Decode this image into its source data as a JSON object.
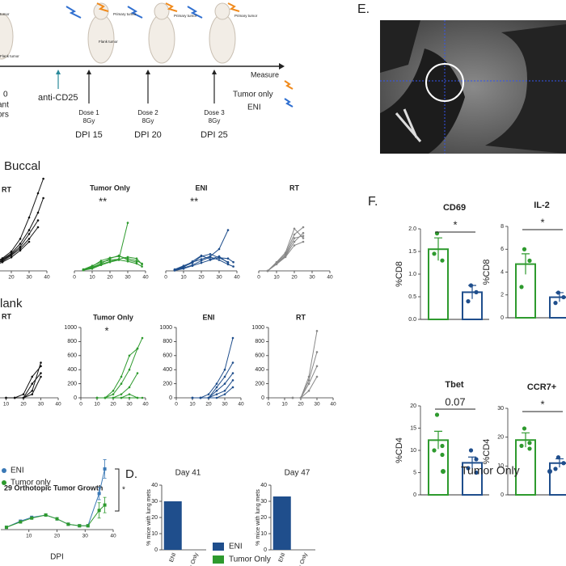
{
  "panel_labels": {
    "e": "E.",
    "f": "F.",
    "d": "D."
  },
  "rows": {
    "buccal": "Buccal",
    "flank": "lank"
  },
  "timeline": {
    "left_labels": [
      "tumor",
      "Flank tumor"
    ],
    "primary_labels": [
      "Primary tumor",
      "Primary tumor",
      "Primary tumor"
    ],
    "flank_label": "Flank tumor",
    "measure": "Measure",
    "left_text": [
      "0",
      "ant",
      "ors"
    ],
    "anti": "anti-CD25",
    "doses": [
      {
        "name": "Dose 1",
        "dose": "8Gy",
        "dpi": "DPI 15"
      },
      {
        "name": "Dose 2",
        "dose": "8Gy",
        "dpi": "DPI 20"
      },
      {
        "name": "Dose 3",
        "dose": "8Gy",
        "dpi": "DPI 25"
      }
    ],
    "legend": [
      "Tumor only",
      "ENI"
    ]
  },
  "chart_data": [
    {
      "type": "line",
      "title": "RT",
      "color": "#111111",
      "x": [
        5,
        10,
        15,
        20,
        25,
        30,
        35,
        38
      ],
      "xlim": [
        0,
        40
      ],
      "xticks": [
        0,
        10,
        20,
        30,
        40
      ],
      "ylim": [
        0,
        1000
      ],
      "series": [
        {
          "values": [
            30,
            80,
            130,
            200,
            330,
            550,
            800,
            950
          ]
        },
        {
          "values": [
            30,
            70,
            120,
            180,
            280,
            420,
            600,
            750
          ]
        },
        {
          "values": [
            20,
            60,
            110,
            170,
            250,
            380,
            520,
            null
          ]
        },
        {
          "values": [
            25,
            70,
            100,
            160,
            230,
            330,
            450,
            null
          ]
        },
        {
          "values": [
            20,
            50,
            90,
            140,
            210,
            300,
            null,
            null
          ]
        }
      ]
    },
    {
      "type": "line",
      "title": "Tumor Only",
      "color": "#2e9a2e",
      "annotation": "**",
      "x": [
        5,
        10,
        15,
        20,
        25,
        30,
        35,
        38
      ],
      "xlim": [
        0,
        40
      ],
      "xticks": [
        0,
        10,
        20,
        30,
        40
      ],
      "ylim": [
        0,
        1000
      ],
      "series": [
        {
          "values": [
            20,
            70,
            120,
            150,
            160,
            660,
            null,
            null
          ]
        },
        {
          "values": [
            20,
            60,
            140,
            180,
            200,
            170,
            140,
            100
          ]
        },
        {
          "values": [
            15,
            50,
            100,
            170,
            210,
            150,
            120,
            null
          ]
        },
        {
          "values": [
            10,
            40,
            90,
            130,
            160,
            190,
            170,
            90
          ]
        },
        {
          "values": [
            10,
            30,
            80,
            120,
            150,
            130,
            100,
            60
          ]
        }
      ]
    },
    {
      "type": "line",
      "title": "ENI",
      "color": "#1f4e8c",
      "annotation": "**",
      "x": [
        5,
        10,
        15,
        20,
        25,
        30,
        35,
        38
      ],
      "xlim": [
        0,
        40
      ],
      "xticks": [
        0,
        10,
        20,
        30,
        40
      ],
      "ylim": [
        0,
        1000
      ],
      "series": [
        {
          "values": [
            20,
            70,
            120,
            160,
            200,
            300,
            560,
            null
          ]
        },
        {
          "values": [
            15,
            60,
            110,
            200,
            230,
            180,
            170,
            120
          ]
        },
        {
          "values": [
            10,
            50,
            130,
            210,
            160,
            200,
            110,
            null
          ]
        },
        {
          "values": [
            10,
            40,
            80,
            140,
            190,
            150,
            90,
            60
          ]
        },
        {
          "values": [
            5,
            30,
            70,
            110,
            150,
            180,
            120,
            null
          ]
        }
      ]
    },
    {
      "type": "line",
      "title": "RT",
      "color": "#888888",
      "x": [
        5,
        10,
        15,
        20,
        25,
        30,
        35,
        38
      ],
      "xlim": [
        0,
        40
      ],
      "xticks": [
        0,
        10,
        20,
        30,
        40
      ],
      "ylim": [
        0,
        1000
      ],
      "series": [
        {
          "values": [
            0,
            120,
            250,
            580,
            450,
            null,
            null,
            null
          ]
        },
        {
          "values": [
            0,
            110,
            230,
            500,
            600,
            null,
            null,
            null
          ]
        },
        {
          "values": [
            0,
            100,
            200,
            400,
            520,
            null,
            null,
            null
          ]
        },
        {
          "values": [
            0,
            90,
            190,
            350,
            400,
            null,
            null,
            null
          ]
        },
        {
          "values": [
            0,
            100,
            210,
            450,
            480,
            null,
            null,
            null
          ]
        }
      ]
    },
    {
      "type": "line",
      "title": "RT",
      "color": "#111111",
      "x": [
        5,
        10,
        15,
        20,
        25,
        30,
        35,
        38
      ],
      "xlim": [
        0,
        40
      ],
      "xticks": [
        0,
        10,
        20,
        30,
        40
      ],
      "ylim": [
        0,
        1000
      ],
      "series": [
        {
          "values": [
            null,
            0,
            0,
            0,
            100,
            500,
            null,
            null
          ]
        },
        {
          "values": [
            null,
            0,
            0,
            50,
            300,
            450,
            null,
            null
          ]
        },
        {
          "values": [
            null,
            0,
            0,
            0,
            50,
            300,
            null,
            null
          ]
        },
        {
          "values": [
            null,
            null,
            0,
            0,
            200,
            350,
            null,
            null
          ]
        }
      ]
    },
    {
      "type": "line",
      "title": "Tumor Only",
      "color": "#2e9a2e",
      "annotation": "*",
      "x": [
        5,
        10,
        15,
        20,
        25,
        30,
        35,
        38
      ],
      "xlim": [
        0,
        40
      ],
      "xticks": [
        0,
        10,
        20,
        30,
        40
      ],
      "ylim": [
        0,
        1000
      ],
      "yticks": [
        0,
        200,
        400,
        600,
        800,
        1000
      ],
      "series": [
        {
          "values": [
            null,
            0,
            0,
            50,
            200,
            400,
            700,
            850
          ]
        },
        {
          "values": [
            null,
            0,
            0,
            100,
            300,
            600,
            700,
            null
          ]
        },
        {
          "values": [
            null,
            0,
            0,
            0,
            50,
            150,
            350,
            null
          ]
        },
        {
          "values": [
            null,
            0,
            0,
            0,
            0,
            50,
            0,
            null
          ]
        },
        {
          "values": [
            null,
            0,
            0,
            0,
            0,
            0,
            0,
            0
          ]
        }
      ]
    },
    {
      "type": "line",
      "title": "ENI",
      "color": "#1f4e8c",
      "x": [
        5,
        10,
        15,
        20,
        25,
        30,
        35,
        38
      ],
      "xlim": [
        0,
        40
      ],
      "xticks": [
        0,
        10,
        20,
        30,
        40
      ],
      "ylim": [
        0,
        1000
      ],
      "yticks": [
        0,
        200,
        400,
        600,
        800,
        1000
      ],
      "series": [
        {
          "values": [
            null,
            0,
            0,
            50,
            200,
            400,
            850,
            null
          ]
        },
        {
          "values": [
            null,
            0,
            0,
            0,
            150,
            300,
            500,
            null
          ]
        },
        {
          "values": [
            null,
            0,
            0,
            0,
            100,
            200,
            350,
            null
          ]
        },
        {
          "values": [
            null,
            0,
            0,
            0,
            50,
            100,
            250,
            null
          ]
        },
        {
          "values": [
            null,
            0,
            0,
            0,
            0,
            50,
            150,
            null
          ]
        }
      ]
    },
    {
      "type": "line",
      "title": "RT",
      "color": "#888888",
      "x": [
        5,
        10,
        15,
        20,
        25,
        30,
        35,
        38
      ],
      "xlim": [
        0,
        40
      ],
      "xticks": [
        0,
        10,
        20,
        30,
        40
      ],
      "ylim": [
        0,
        1000
      ],
      "yticks": [
        0,
        200,
        400,
        600,
        800,
        1000
      ],
      "series": [
        {
          "values": [
            null,
            null,
            0,
            0,
            300,
            950,
            null,
            null
          ]
        },
        {
          "values": [
            null,
            null,
            0,
            0,
            250,
            650,
            null,
            null
          ]
        },
        {
          "values": [
            null,
            null,
            0,
            0,
            200,
            450,
            null,
            null
          ]
        },
        {
          "values": [
            null,
            null,
            0,
            0,
            100,
            300,
            null,
            null
          ]
        }
      ]
    },
    {
      "type": "line",
      "title": "29 Orthotopic Tumor Growth",
      "xlabel": "DPI",
      "annotation": "*",
      "x": [
        2,
        7,
        11,
        16,
        20,
        24,
        28,
        31,
        35,
        37
      ],
      "xlim": [
        0,
        40
      ],
      "xticks": [
        10,
        20,
        30,
        40
      ],
      "ylim": [
        0,
        100
      ],
      "series": [
        {
          "name": "ENI",
          "color": "#3a78b5",
          "values": [
            3,
            11,
            16,
            19,
            14,
            7,
            5,
            5,
            47,
            79
          ],
          "errors": [
            0,
            0,
            0,
            0,
            0,
            0,
            0,
            0,
            8,
            12
          ]
        },
        {
          "name": "Tumor only",
          "color": "#2e9a2e",
          "values": [
            3,
            10,
            15,
            19,
            14,
            7,
            5,
            5,
            25,
            32
          ],
          "errors": [
            0,
            0,
            0,
            0,
            0,
            0,
            0,
            0,
            10,
            10
          ]
        }
      ]
    },
    {
      "type": "bar",
      "title": "Day 41",
      "ylabel": "% mice with lung mets",
      "categories": [
        "ENI",
        "Tumor Only"
      ],
      "values": [
        30,
        0
      ],
      "colors": [
        "#1f4e8c",
        "#2e9a2e"
      ],
      "ylim": [
        0,
        40
      ],
      "yticks": [
        0,
        10,
        20,
        30,
        40
      ]
    },
    {
      "type": "bar",
      "title": "Day 47",
      "ylabel": "% mice with lung mets",
      "categories": [
        "ENI",
        "Tumor Only"
      ],
      "values": [
        33,
        0
      ],
      "colors": [
        "#1f4e8c",
        "#2e9a2e"
      ],
      "ylim": [
        0,
        40
      ],
      "yticks": [
        0,
        10,
        20,
        30,
        40
      ]
    },
    {
      "type": "dotbar",
      "title": "CD69",
      "ylabel": "%CD8",
      "annotation": "*",
      "ylim": [
        0,
        2
      ],
      "yticks": [
        {
          "value": 0,
          "label": "0.0"
        },
        {
          "value": 0.5,
          "label": "0.5"
        },
        {
          "value": 1,
          "label": "1.0"
        },
        {
          "value": 1.5,
          "label": "1.5"
        },
        {
          "value": 2,
          "label": "2.0"
        }
      ],
      "series": [
        {
          "name": "Tumor Only",
          "color": "#2e9a2e",
          "value": 1.55,
          "error": 0.25,
          "points": [
            1.9,
            1.3,
            1.45
          ]
        },
        {
          "color": "#1f4e8c",
          "value": 0.6,
          "error": 0.15,
          "points": [
            0.75,
            0.6,
            0.4
          ]
        }
      ]
    },
    {
      "type": "dotbar",
      "title": "IL-2",
      "ylabel": "%CD8",
      "annotation": "*",
      "ylim": [
        0,
        8
      ],
      "yticks": [
        0,
        2,
        4,
        6,
        8
      ],
      "series": [
        {
          "color": "#2e9a2e",
          "value": 4.7,
          "error": 0.9,
          "points": [
            6,
            5,
            2.7
          ]
        },
        {
          "color": "#1f4e8c",
          "value": 1.8,
          "error": 0.4,
          "points": [
            2.2,
            1.8,
            1.3
          ]
        }
      ]
    },
    {
      "type": "dotbar",
      "title": "Tbet",
      "ylabel": "%CD4",
      "annotation": "0.07",
      "ylim": [
        0,
        20
      ],
      "yticks": [
        0,
        5,
        10,
        15,
        20
      ],
      "series": [
        {
          "color": "#2e9a2e",
          "value": 12.3,
          "error": 2,
          "points": [
            18,
            11,
            10,
            9
          ]
        },
        {
          "color": "#1f4e8c",
          "value": 7.2,
          "error": 1.3,
          "points": [
            10,
            8,
            6,
            5
          ]
        }
      ]
    },
    {
      "type": "dotbar",
      "title": "CCR7+",
      "ylabel": "%CD4",
      "annotation": "*",
      "ylim": [
        0,
        30
      ],
      "yticks": [
        0,
        10,
        20,
        30
      ],
      "series": [
        {
          "color": "#2e9a2e",
          "value": 19,
          "error": 2.5,
          "points": [
            23,
            18,
            17,
            16
          ]
        },
        {
          "color": "#1f4e8c",
          "value": 11,
          "error": 1.5,
          "points": [
            13,
            11,
            9
          ]
        }
      ]
    }
  ]
}
